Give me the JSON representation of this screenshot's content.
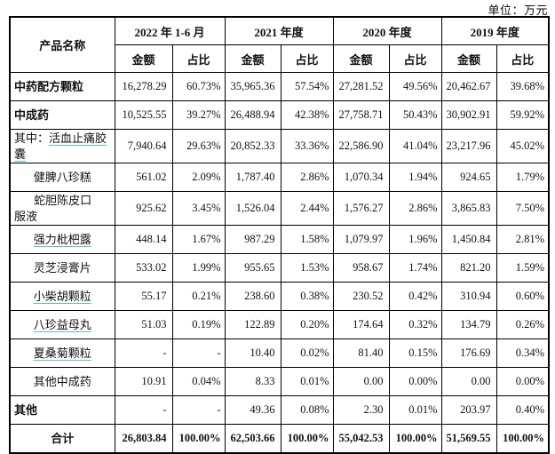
{
  "unit_label": "单位：万元",
  "table": {
    "col_product": "产品名称",
    "col_amount": "金额",
    "col_ratio": "占比",
    "periods": [
      "2022 年 1-6 月",
      "2021 年度",
      "2020 年度",
      "2019 年度"
    ],
    "rows": [
      {
        "prefix": "",
        "name": "中药配方颗粒",
        "style": "cat",
        "link": false,
        "cells": [
          "16,278.29",
          "60.73%",
          "35,965.36",
          "57.54%",
          "27,281.52",
          "49.56%",
          "20,462.67",
          "39.68%"
        ]
      },
      {
        "prefix": "",
        "name": "中成药",
        "style": "cat",
        "link": false,
        "cells": [
          "10,525.55",
          "39.27%",
          "26,488.94",
          "42.38%",
          "27,758.71",
          "50.43%",
          "30,902.91",
          "59.92%"
        ]
      },
      {
        "prefix": "其中：",
        "name": "活血止痛胶囊",
        "style": "subleft",
        "link": true,
        "cells": [
          "7,940.64",
          "29.63%",
          "20,852.33",
          "33.36%",
          "22,586.90",
          "41.04%",
          "23,217.96",
          "45.02%"
        ]
      },
      {
        "prefix": "",
        "name": "健脾八珍糕",
        "style": "sub",
        "link": false,
        "cells": [
          "561.02",
          "2.09%",
          "1,787.40",
          "2.86%",
          "1,070.34",
          "1.94%",
          "924.65",
          "1.79%"
        ]
      },
      {
        "prefix": "",
        "name": "蛇胆陈皮口服液",
        "style": "subwrap",
        "link": false,
        "cells": [
          "925.62",
          "3.45%",
          "1,526.04",
          "2.44%",
          "1,576.27",
          "2.86%",
          "3,865.83",
          "7.50%"
        ]
      },
      {
        "prefix": "",
        "name": "强力枇杷露",
        "style": "sub",
        "link": true,
        "cells": [
          "448.14",
          "1.67%",
          "987.29",
          "1.58%",
          "1,079.97",
          "1.96%",
          "1,450.84",
          "2.81%"
        ]
      },
      {
        "prefix": "",
        "name": "灵芝浸膏片",
        "style": "sub",
        "link": false,
        "cells": [
          "533.02",
          "1.99%",
          "955.65",
          "1.53%",
          "958.67",
          "1.74%",
          "821.20",
          "1.59%"
        ]
      },
      {
        "prefix": "",
        "name": "小柴胡颗粒",
        "style": "sub",
        "link": true,
        "cells": [
          "55.17",
          "0.21%",
          "238.60",
          "0.38%",
          "230.52",
          "0.42%",
          "310.94",
          "0.60%"
        ]
      },
      {
        "prefix": "",
        "name": "八珍益母丸",
        "style": "sub",
        "link": true,
        "cells": [
          "51.03",
          "0.19%",
          "122.89",
          "0.20%",
          "174.64",
          "0.32%",
          "134.79",
          "0.26%"
        ]
      },
      {
        "prefix": "",
        "name": "夏桑菊颗粒",
        "style": "sub",
        "link": true,
        "cells": [
          "-",
          "-",
          "10.40",
          "0.02%",
          "81.40",
          "0.15%",
          "176.69",
          "0.34%"
        ]
      },
      {
        "prefix": "",
        "name": "其他中成药",
        "style": "sub",
        "link": false,
        "cells": [
          "10.91",
          "0.04%",
          "8.33",
          "0.01%",
          "0.00",
          "0.00%",
          "0.00",
          "0.00%"
        ]
      },
      {
        "prefix": "",
        "name": "其他",
        "style": "cat",
        "link": false,
        "cells": [
          "-",
          "-",
          "49.36",
          "0.08%",
          "2.30",
          "0.01%",
          "203.97",
          "0.40%"
        ]
      },
      {
        "prefix": "",
        "name": "合计",
        "style": "total",
        "link": false,
        "cells": [
          "26,803.84",
          "100.00%",
          "62,503.66",
          "100.00%",
          "55,042.53",
          "100.00%",
          "51,569.55",
          "100.00%"
        ]
      }
    ]
  },
  "colors": {
    "link_underline": "#62bccd",
    "border": "#000000",
    "text": "#121212"
  }
}
